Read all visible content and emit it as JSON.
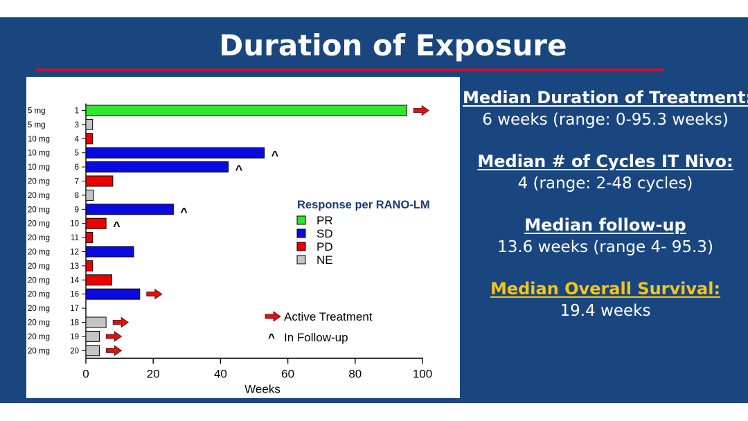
{
  "title": "Duration of Exposure",
  "colors": {
    "slide_bg": "#1a4680",
    "title_rule": "#c8102e",
    "PR": "#2ee62e",
    "SD": "#0a0ae0",
    "PD": "#ee0000",
    "NE": "#c4c4c4",
    "arrow": "#dd1111",
    "highlight": "#f5c518"
  },
  "stats": [
    {
      "heading": "Median Duration of Treatment:",
      "value": "6 weeks (range: 0-95.3 weeks)"
    },
    {
      "heading": "Median # of Cycles IT Nivo:",
      "value": "4 (range: 2-48 cycles)"
    },
    {
      "heading": "Median follow-up",
      "value": "13.6 weeks (range 4- 95.3)"
    },
    {
      "heading": "Median Overall Survival:",
      "value": "19.4 weeks",
      "highlight": true
    }
  ],
  "chart_data": {
    "type": "bar",
    "orientation": "horizontal",
    "xlabel": "Weeks",
    "xlim": [
      0,
      100
    ],
    "xticks": [
      0,
      20,
      40,
      60,
      80,
      100
    ],
    "legend": {
      "title": "Response per RANO-LM",
      "entries": [
        {
          "key": "PR",
          "label": "PR"
        },
        {
          "key": "SD",
          "label": "SD"
        },
        {
          "key": "PD",
          "label": "PD"
        },
        {
          "key": "NE",
          "label": "NE"
        }
      ],
      "position": "center-right"
    },
    "marker_legend": {
      "active": "Active Treatment",
      "caret_symbol": "^",
      "caret_label": "In Follow-up"
    },
    "patients": [
      {
        "dose": "5 mg",
        "id": "1",
        "weeks": 95.3,
        "response": "PR",
        "marker": "active"
      },
      {
        "dose": "5 mg",
        "id": "3",
        "weeks": 2,
        "response": "NE",
        "marker": ""
      },
      {
        "dose": "10 mg",
        "id": "4",
        "weeks": 2,
        "response": "PD",
        "marker": ""
      },
      {
        "dose": "10 mg",
        "id": "5",
        "weeks": 53,
        "response": "SD",
        "marker": "followup"
      },
      {
        "dose": "10 mg",
        "id": "6",
        "weeks": 42.3,
        "response": "SD",
        "marker": "followup"
      },
      {
        "dose": "20 mg",
        "id": "7",
        "weeks": 8,
        "response": "PD",
        "marker": ""
      },
      {
        "dose": "20 mg",
        "id": "8",
        "weeks": 2.3,
        "response": "NE",
        "marker": ""
      },
      {
        "dose": "20 mg",
        "id": "9",
        "weeks": 26,
        "response": "SD",
        "marker": "followup"
      },
      {
        "dose": "20 mg",
        "id": "10",
        "weeks": 6,
        "response": "PD",
        "marker": "followup"
      },
      {
        "dose": "20 mg",
        "id": "11",
        "weeks": 2,
        "response": "PD",
        "marker": ""
      },
      {
        "dose": "20 mg",
        "id": "12",
        "weeks": 14.2,
        "response": "SD",
        "marker": ""
      },
      {
        "dose": "20 mg",
        "id": "13",
        "weeks": 2,
        "response": "PD",
        "marker": ""
      },
      {
        "dose": "20 mg",
        "id": "14",
        "weeks": 7.7,
        "response": "PD",
        "marker": ""
      },
      {
        "dose": "20 mg",
        "id": "16",
        "weeks": 16,
        "response": "SD",
        "marker": "active"
      },
      {
        "dose": "20 mg",
        "id": "17",
        "weeks": 0,
        "response": "NE",
        "marker": ""
      },
      {
        "dose": "20 mg",
        "id": "18",
        "weeks": 6,
        "response": "NE",
        "marker": "active"
      },
      {
        "dose": "20 mg",
        "id": "19",
        "weeks": 4,
        "response": "NE",
        "marker": "active"
      },
      {
        "dose": "20 mg",
        "id": "20",
        "weeks": 4,
        "response": "NE",
        "marker": "active"
      }
    ]
  }
}
